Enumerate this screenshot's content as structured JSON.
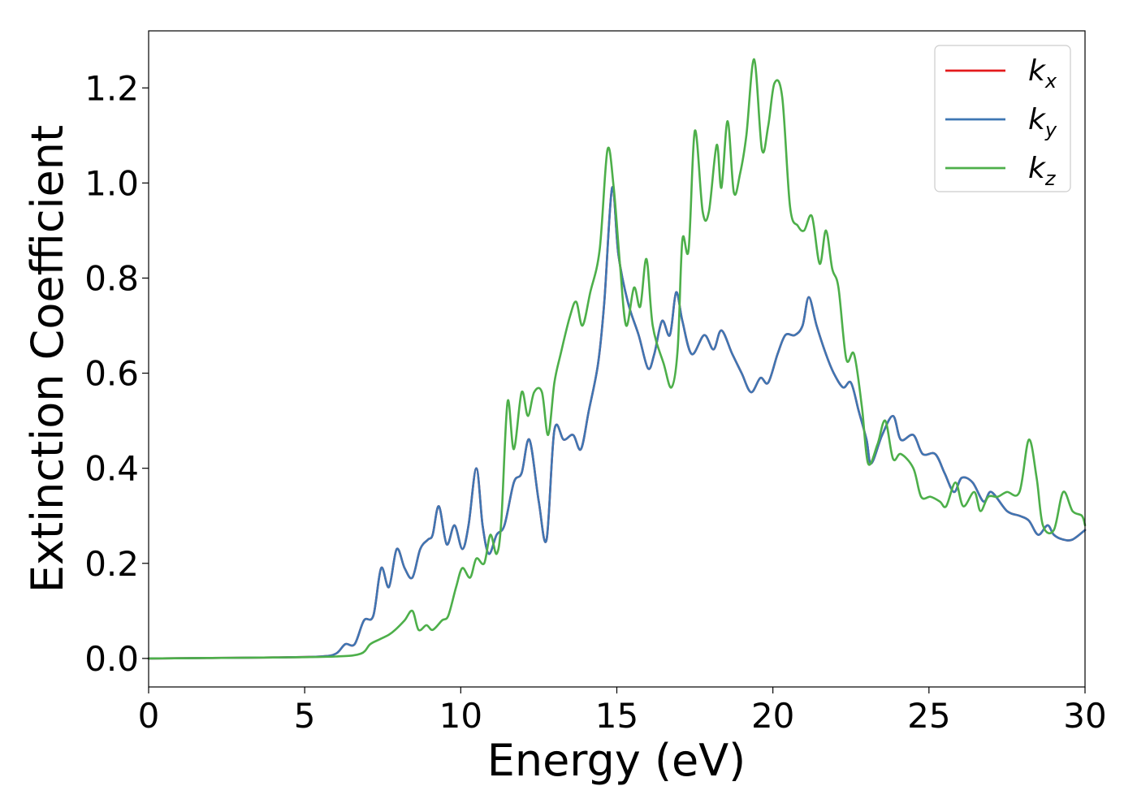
{
  "chart_data": {
    "type": "line",
    "xlabel": "Energy (eV)",
    "ylabel": "Extinction Coefficient",
    "xlim": [
      0,
      30
    ],
    "ylim": [
      -0.06,
      1.32
    ],
    "xticks": [
      0,
      5,
      10,
      15,
      20,
      25,
      30
    ],
    "xtick_labels": [
      "0",
      "5",
      "10",
      "15",
      "20",
      "25",
      "30"
    ],
    "yticks": [
      0.0,
      0.2,
      0.4,
      0.6,
      0.8,
      1.0,
      1.2
    ],
    "ytick_labels": [
      "0.0",
      "0.2",
      "0.4",
      "0.6",
      "0.8",
      "1.0",
      "1.2"
    ],
    "grid": false,
    "legend_position": "top-right",
    "series": [
      {
        "name": "k_x",
        "legend_base": "k",
        "legend_sub": "x",
        "color": "#e41a1c",
        "x": [
          0,
          2,
          4,
          5.5,
          6.0,
          6.3,
          6.6,
          6.9,
          7.2,
          7.45,
          7.7,
          7.95,
          8.2,
          8.45,
          8.7,
          8.95,
          9.1,
          9.3,
          9.55,
          9.8,
          10.05,
          10.25,
          10.5,
          10.7,
          10.9,
          11.15,
          11.4,
          11.7,
          11.95,
          12.2,
          12.5,
          12.75,
          13.0,
          13.3,
          13.6,
          13.85,
          14.1,
          14.4,
          14.6,
          14.85,
          15.05,
          15.35,
          15.7,
          16.0,
          16.2,
          16.45,
          16.7,
          16.9,
          17.1,
          17.4,
          17.8,
          18.1,
          18.35,
          18.7,
          19.0,
          19.3,
          19.6,
          19.85,
          20.15,
          20.4,
          20.7,
          20.95,
          21.15,
          21.4,
          21.7,
          21.95,
          22.25,
          22.5,
          22.75,
          23.0,
          23.15,
          23.5,
          23.85,
          24.1,
          24.5,
          24.8,
          25.2,
          25.5,
          25.8,
          26.05,
          26.4,
          26.75,
          27.0,
          27.5,
          27.9,
          28.2,
          28.5,
          28.8,
          29.0,
          29.3,
          29.6,
          30.0
        ],
        "y": [
          0.0,
          0.001,
          0.002,
          0.004,
          0.01,
          0.03,
          0.03,
          0.08,
          0.09,
          0.19,
          0.15,
          0.23,
          0.19,
          0.17,
          0.23,
          0.25,
          0.26,
          0.32,
          0.24,
          0.28,
          0.23,
          0.28,
          0.4,
          0.28,
          0.22,
          0.26,
          0.28,
          0.37,
          0.39,
          0.46,
          0.33,
          0.25,
          0.48,
          0.46,
          0.47,
          0.44,
          0.52,
          0.62,
          0.75,
          0.99,
          0.85,
          0.75,
          0.68,
          0.61,
          0.64,
          0.71,
          0.68,
          0.77,
          0.71,
          0.64,
          0.68,
          0.65,
          0.69,
          0.64,
          0.6,
          0.56,
          0.59,
          0.58,
          0.64,
          0.68,
          0.68,
          0.7,
          0.76,
          0.7,
          0.64,
          0.6,
          0.57,
          0.58,
          0.52,
          0.46,
          0.41,
          0.47,
          0.51,
          0.46,
          0.47,
          0.43,
          0.43,
          0.39,
          0.35,
          0.38,
          0.37,
          0.33,
          0.35,
          0.31,
          0.3,
          0.29,
          0.26,
          0.28,
          0.26,
          0.25,
          0.25,
          0.27
        ]
      },
      {
        "name": "k_y",
        "legend_base": "k",
        "legend_sub": "y",
        "color": "#3e76b3",
        "x": [
          0,
          2,
          4,
          5.5,
          6.0,
          6.3,
          6.6,
          6.9,
          7.2,
          7.45,
          7.7,
          7.95,
          8.2,
          8.45,
          8.7,
          8.95,
          9.1,
          9.3,
          9.55,
          9.8,
          10.05,
          10.25,
          10.5,
          10.7,
          10.9,
          11.15,
          11.4,
          11.7,
          11.95,
          12.2,
          12.5,
          12.75,
          13.0,
          13.3,
          13.6,
          13.85,
          14.1,
          14.4,
          14.6,
          14.85,
          15.05,
          15.35,
          15.7,
          16.0,
          16.2,
          16.45,
          16.7,
          16.9,
          17.1,
          17.4,
          17.8,
          18.1,
          18.35,
          18.7,
          19.0,
          19.3,
          19.6,
          19.85,
          20.15,
          20.4,
          20.7,
          20.95,
          21.15,
          21.4,
          21.7,
          21.95,
          22.25,
          22.5,
          22.75,
          23.0,
          23.15,
          23.5,
          23.85,
          24.1,
          24.5,
          24.8,
          25.2,
          25.5,
          25.8,
          26.05,
          26.4,
          26.75,
          27.0,
          27.5,
          27.9,
          28.2,
          28.5,
          28.8,
          29.0,
          29.3,
          29.6,
          30.0
        ],
        "y": [
          0.0,
          0.001,
          0.002,
          0.004,
          0.01,
          0.03,
          0.03,
          0.08,
          0.09,
          0.19,
          0.15,
          0.23,
          0.19,
          0.17,
          0.23,
          0.25,
          0.26,
          0.32,
          0.24,
          0.28,
          0.23,
          0.28,
          0.4,
          0.28,
          0.22,
          0.26,
          0.28,
          0.37,
          0.39,
          0.46,
          0.33,
          0.25,
          0.48,
          0.46,
          0.47,
          0.44,
          0.52,
          0.62,
          0.75,
          0.99,
          0.85,
          0.75,
          0.68,
          0.61,
          0.64,
          0.71,
          0.68,
          0.77,
          0.71,
          0.64,
          0.68,
          0.65,
          0.69,
          0.64,
          0.6,
          0.56,
          0.59,
          0.58,
          0.64,
          0.68,
          0.68,
          0.7,
          0.76,
          0.7,
          0.64,
          0.6,
          0.57,
          0.58,
          0.52,
          0.46,
          0.41,
          0.47,
          0.51,
          0.46,
          0.47,
          0.43,
          0.43,
          0.39,
          0.35,
          0.38,
          0.37,
          0.33,
          0.35,
          0.31,
          0.3,
          0.29,
          0.26,
          0.28,
          0.26,
          0.25,
          0.25,
          0.27
        ]
      },
      {
        "name": "k_z",
        "legend_base": "k",
        "legend_sub": "z",
        "color": "#4daf4a",
        "x": [
          0,
          2,
          4,
          6,
          6.8,
          7.1,
          7.4,
          7.7,
          7.9,
          8.2,
          8.45,
          8.65,
          8.9,
          9.1,
          9.4,
          9.6,
          9.85,
          10.05,
          10.3,
          10.5,
          10.75,
          10.95,
          11.15,
          11.3,
          11.5,
          11.7,
          11.95,
          12.15,
          12.35,
          12.6,
          12.8,
          13.0,
          13.2,
          13.5,
          13.7,
          13.9,
          14.15,
          14.45,
          14.7,
          14.9,
          15.1,
          15.3,
          15.55,
          15.75,
          15.95,
          16.15,
          16.5,
          16.75,
          16.95,
          17.1,
          17.3,
          17.5,
          17.75,
          17.95,
          18.2,
          18.35,
          18.55,
          18.75,
          18.95,
          19.15,
          19.4,
          19.65,
          19.85,
          20.05,
          20.3,
          20.55,
          20.8,
          21.0,
          21.25,
          21.5,
          21.7,
          21.9,
          22.1,
          22.35,
          22.6,
          22.85,
          23.05,
          23.35,
          23.6,
          23.85,
          24.1,
          24.5,
          24.75,
          25.05,
          25.35,
          25.55,
          25.85,
          26.1,
          26.45,
          26.65,
          26.9,
          27.2,
          27.5,
          27.9,
          28.2,
          28.45,
          28.65,
          29.0,
          29.3,
          29.6,
          29.9,
          30.0
        ],
        "y": [
          0.0,
          0.001,
          0.002,
          0.004,
          0.01,
          0.03,
          0.04,
          0.05,
          0.06,
          0.08,
          0.1,
          0.06,
          0.07,
          0.06,
          0.08,
          0.09,
          0.15,
          0.19,
          0.17,
          0.21,
          0.2,
          0.26,
          0.22,
          0.29,
          0.54,
          0.44,
          0.56,
          0.51,
          0.56,
          0.56,
          0.47,
          0.58,
          0.64,
          0.72,
          0.75,
          0.7,
          0.77,
          0.86,
          1.07,
          0.99,
          0.83,
          0.7,
          0.78,
          0.74,
          0.84,
          0.7,
          0.62,
          0.57,
          0.65,
          0.88,
          0.86,
          1.11,
          0.94,
          0.94,
          1.08,
          0.99,
          1.13,
          0.98,
          1.02,
          1.1,
          1.26,
          1.07,
          1.12,
          1.21,
          1.18,
          0.95,
          0.91,
          0.9,
          0.93,
          0.83,
          0.9,
          0.82,
          0.78,
          0.63,
          0.64,
          0.53,
          0.41,
          0.45,
          0.5,
          0.42,
          0.43,
          0.4,
          0.34,
          0.34,
          0.33,
          0.32,
          0.37,
          0.32,
          0.35,
          0.31,
          0.34,
          0.34,
          0.35,
          0.35,
          0.46,
          0.38,
          0.28,
          0.27,
          0.35,
          0.31,
          0.3,
          0.28
        ]
      }
    ]
  }
}
